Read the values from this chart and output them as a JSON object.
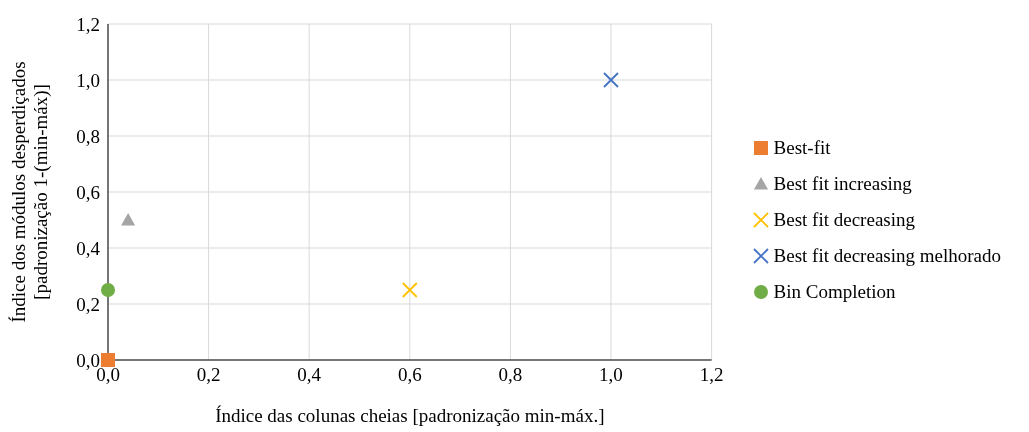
{
  "chart_data": {
    "type": "scatter",
    "xlabel": "Índice das colunas cheias [padronização min-máx.]",
    "ylabel": "Índice dos módulos desperdiçados\n[padronização 1-(min-máx)]",
    "xlim": [
      0,
      1.2
    ],
    "xticks": [
      {
        "value": 0,
        "label": "0,0"
      },
      {
        "value": 0.2,
        "label": "0,2"
      },
      {
        "value": 0.4,
        "label": "0,4"
      },
      {
        "value": 0.6,
        "label": "0,6"
      },
      {
        "value": 0.8,
        "label": "0,8"
      },
      {
        "value": 1,
        "label": "1,0"
      },
      {
        "value": 1.2,
        "label": "1,2"
      }
    ],
    "ylim": [
      0,
      1.2
    ],
    "yticks": [
      {
        "value": 0,
        "label": "0,0"
      },
      {
        "value": 0.2,
        "label": "0,2"
      },
      {
        "value": 0.4,
        "label": "0,4"
      },
      {
        "value": 0.6,
        "label": "0,6"
      },
      {
        "value": 0.8,
        "label": "0,8"
      },
      {
        "value": 1,
        "label": "1,0"
      },
      {
        "value": 1.2,
        "label": "1,2"
      }
    ],
    "grid": true,
    "legend": "right",
    "series": [
      {
        "name": "Best-fit",
        "color": "#ed7d31",
        "marker": "square",
        "x": [
          0
        ],
        "values": [
          0
        ]
      },
      {
        "name": "Best fit increasing",
        "color": "#a5a5a5",
        "marker": "triangle",
        "x": [
          0.04
        ],
        "values": [
          0.5
        ]
      },
      {
        "name": "Best fit decreasing",
        "color": "#ffc000",
        "marker": "cross",
        "x": [
          0.6
        ],
        "values": [
          0.25
        ]
      },
      {
        "name": "Best fit decreasing melhorado",
        "color": "#4472c4",
        "marker": "cross",
        "x": [
          1
        ],
        "values": [
          1
        ]
      },
      {
        "name": "Bin Completion",
        "color": "#70ad47",
        "marker": "circle",
        "x": [
          0
        ],
        "values": [
          0.25
        ]
      }
    ]
  }
}
